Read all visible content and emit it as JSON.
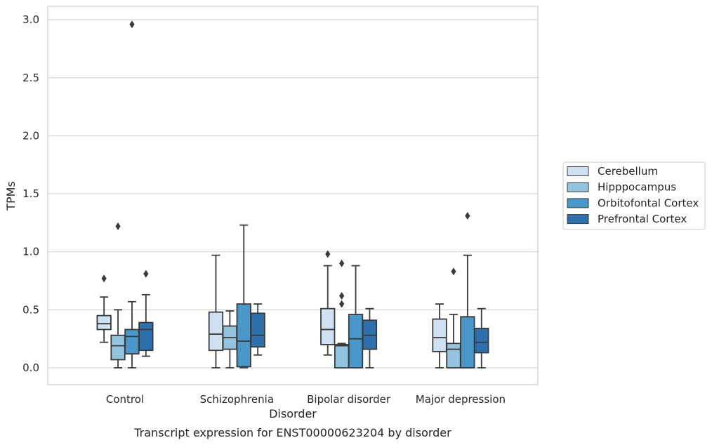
{
  "chart_data": {
    "type": "box",
    "xlabel": "Disorder",
    "ylabel": "TPMs",
    "caption": "Transcript expression for ENST00000623204 by disorder",
    "ylim": [
      -0.14,
      3.11
    ],
    "yticks": [
      "0.0",
      "0.5",
      "1.0",
      "1.5",
      "2.0",
      "2.5",
      "3.0"
    ],
    "grid": "horizontal",
    "legend_position": "right",
    "categories": [
      "Control",
      "Schizophrenia",
      "Bipolar disorder",
      "Major depression"
    ],
    "series": [
      {
        "name": "Cerebellum",
        "color": "#d0e1f2",
        "boxes": [
          {
            "whisker_low": 0.22,
            "q1": 0.33,
            "median": 0.38,
            "q3": 0.45,
            "whisker_high": 0.61,
            "outliers": [
              0.77
            ]
          },
          {
            "whisker_low": 0.0,
            "q1": 0.15,
            "median": 0.29,
            "q3": 0.48,
            "whisker_high": 0.97,
            "outliers": []
          },
          {
            "whisker_low": 0.11,
            "q1": 0.2,
            "median": 0.33,
            "q3": 0.51,
            "whisker_high": 0.88,
            "outliers": [
              0.98
            ]
          },
          {
            "whisker_low": 0.0,
            "q1": 0.14,
            "median": 0.26,
            "q3": 0.42,
            "whisker_high": 0.55,
            "outliers": []
          }
        ]
      },
      {
        "name": "Hipppocampus",
        "color": "#94c4df",
        "boxes": [
          {
            "whisker_low": 0.0,
            "q1": 0.07,
            "median": 0.19,
            "q3": 0.28,
            "whisker_high": 0.5,
            "outliers": [
              1.22
            ]
          },
          {
            "whisker_low": 0.0,
            "q1": 0.16,
            "median": 0.26,
            "q3": 0.36,
            "whisker_high": 0.49,
            "outliers": []
          },
          {
            "whisker_low": 0.0,
            "q1": 0.0,
            "median": 0.19,
            "q3": 0.2,
            "whisker_high": 0.21,
            "outliers": [
              0.55,
              0.62,
              0.9
            ]
          },
          {
            "whisker_low": 0.0,
            "q1": 0.0,
            "median": 0.16,
            "q3": 0.21,
            "whisker_high": 0.46,
            "outliers": [
              0.83
            ]
          }
        ]
      },
      {
        "name": "Orbitofontal Cortex",
        "color": "#4a98c9",
        "boxes": [
          {
            "whisker_low": 0.0,
            "q1": 0.12,
            "median": 0.27,
            "q3": 0.33,
            "whisker_high": 0.57,
            "outliers": [
              2.96
            ]
          },
          {
            "whisker_low": 0.0,
            "q1": 0.01,
            "median": 0.23,
            "q3": 0.55,
            "whisker_high": 1.23,
            "outliers": []
          },
          {
            "whisker_low": 0.0,
            "q1": 0.0,
            "median": 0.25,
            "q3": 0.46,
            "whisker_high": 0.88,
            "outliers": []
          },
          {
            "whisker_low": 0.0,
            "q1": 0.0,
            "median": 0.0,
            "q3": 0.44,
            "whisker_high": 0.97,
            "outliers": [
              1.31
            ]
          }
        ]
      },
      {
        "name": "Prefrontal Cortex",
        "color": "#2e6fad",
        "boxes": [
          {
            "whisker_low": 0.1,
            "q1": 0.15,
            "median": 0.33,
            "q3": 0.39,
            "whisker_high": 0.63,
            "outliers": [
              0.81
            ]
          },
          {
            "whisker_low": 0.11,
            "q1": 0.18,
            "median": 0.28,
            "q3": 0.47,
            "whisker_high": 0.55,
            "outliers": []
          },
          {
            "whisker_low": 0.0,
            "q1": 0.16,
            "median": 0.28,
            "q3": 0.41,
            "whisker_high": 0.51,
            "outliers": []
          },
          {
            "whisker_low": 0.0,
            "q1": 0.13,
            "median": 0.22,
            "q3": 0.34,
            "whisker_high": 0.51,
            "outliers": []
          }
        ]
      }
    ]
  }
}
